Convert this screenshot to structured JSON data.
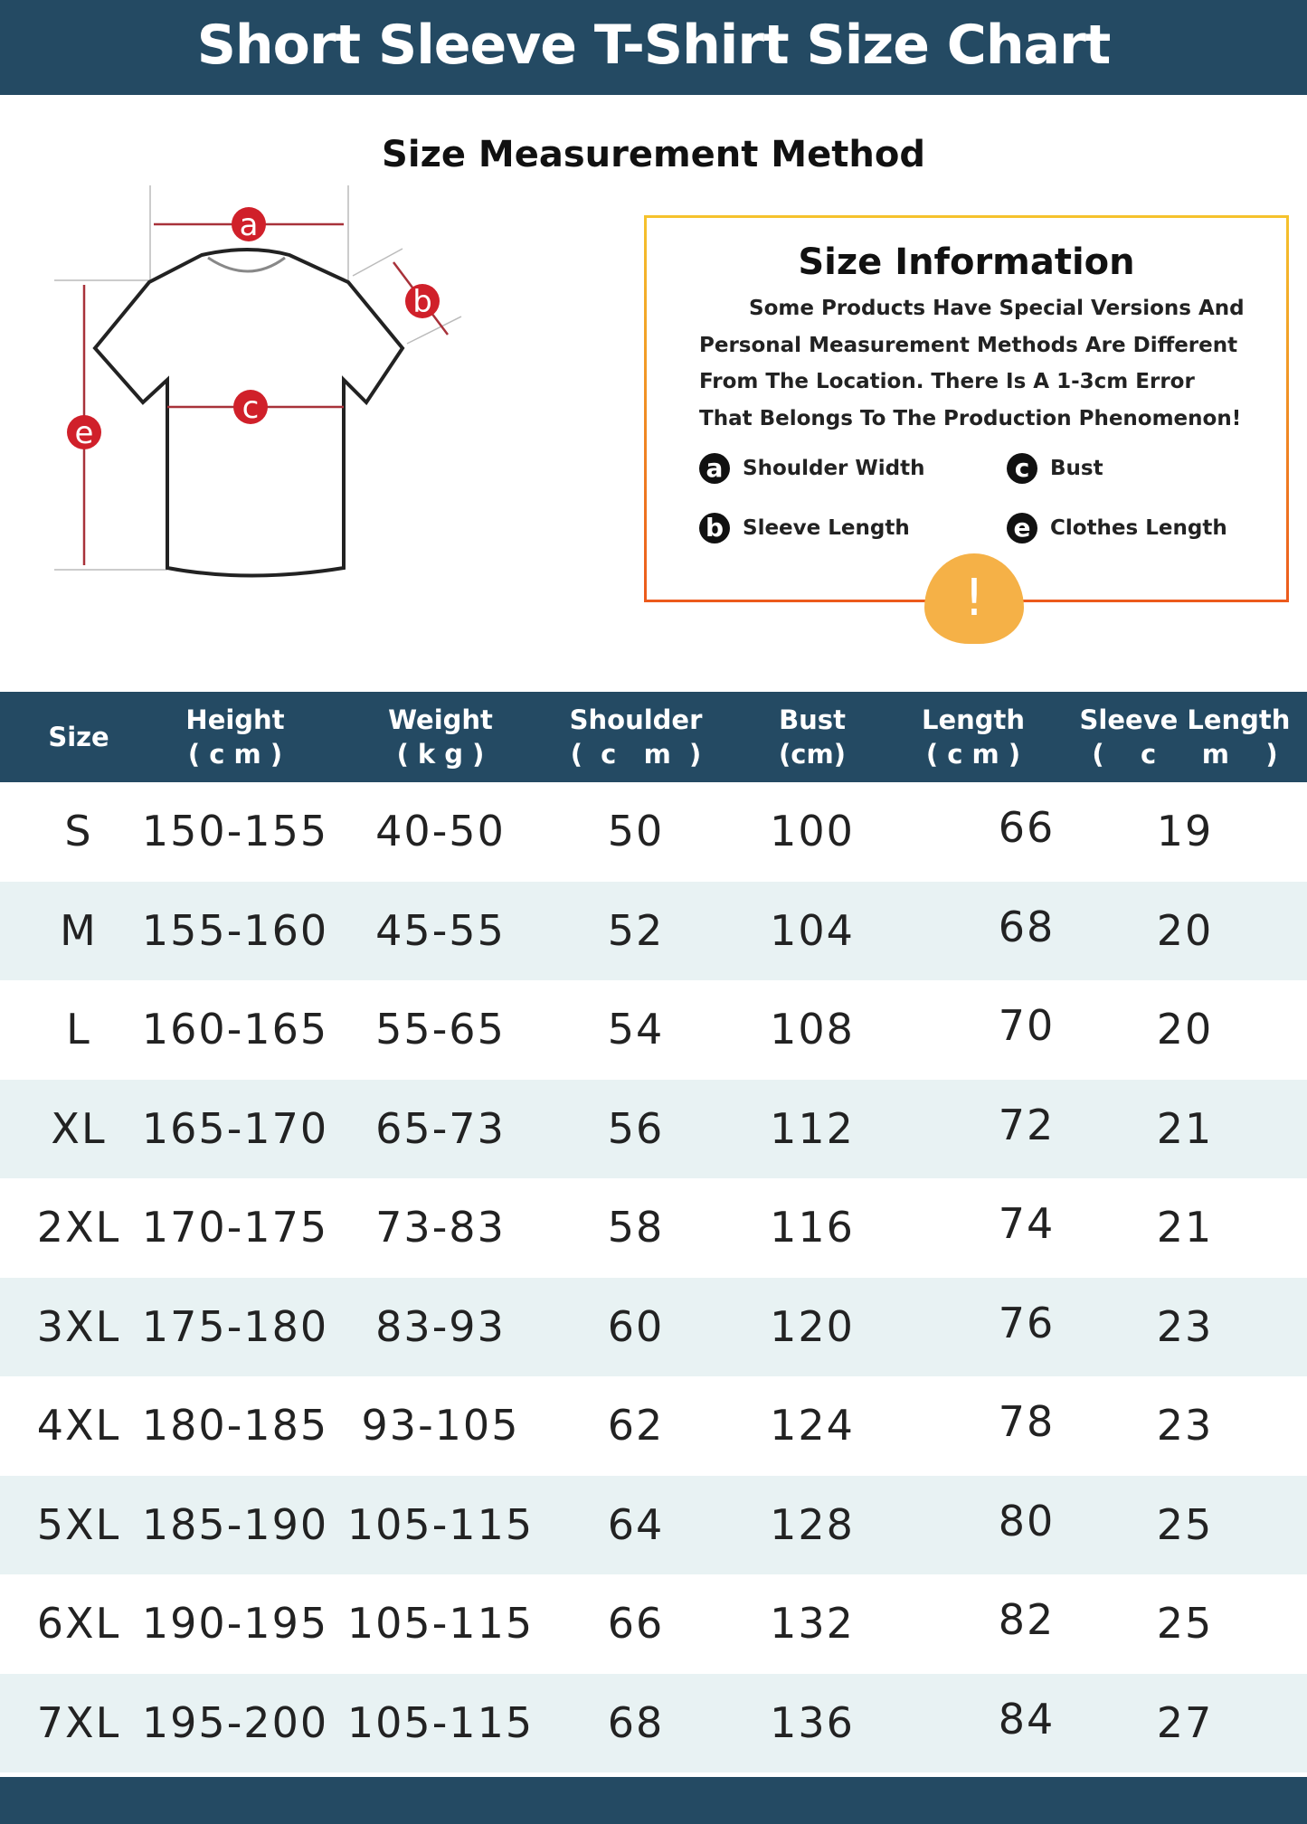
{
  "title": "Short Sleeve T-Shirt Size Chart",
  "subtitle": "Size Measurement Method",
  "diagram_labels": [
    "a",
    "b",
    "c",
    "e"
  ],
  "info": {
    "title": "Size Information",
    "text": "Some Products Have Special Versions And Personal Measurement Methods Are Different From The Location. There Is A 1-3cm Error That Belongs To The Production Phenomenon!",
    "legend": [
      {
        "key": "a",
        "label": "Shoulder Width"
      },
      {
        "key": "c",
        "label": "Bust"
      },
      {
        "key": "b",
        "label": "Sleeve Length"
      },
      {
        "key": "e",
        "label": "Clothes Length"
      }
    ]
  },
  "warning_icon": "!",
  "colors": {
    "header": "#244a63",
    "row_alt": "#e8f2f3",
    "marker": "#d0202a",
    "box_top": "#f5c22c",
    "box_bottom": "#ec5a1c",
    "warning": "#f5b147"
  },
  "table": {
    "headers": [
      {
        "line1": "Size",
        "line2": ""
      },
      {
        "line1": "Height",
        "line2": "( c m )"
      },
      {
        "line1": "Weight",
        "line2": "( k g )"
      },
      {
        "line1": "Shoulder",
        "line2": "(  c   m  )"
      },
      {
        "line1": "Bust",
        "line2": "(cm)"
      },
      {
        "line1": "Length",
        "line2": "( c m )"
      },
      {
        "line1": "Sleeve Length",
        "line2": "(    c     m    )"
      }
    ],
    "rows": [
      [
        "S",
        "150-155",
        "40-50",
        "50",
        "100",
        "66",
        "19"
      ],
      [
        "M",
        "155-160",
        "45-55",
        "52",
        "104",
        "68",
        "20"
      ],
      [
        "L",
        "160-165",
        "55-65",
        "54",
        "108",
        "70",
        "20"
      ],
      [
        "XL",
        "165-170",
        "65-73",
        "56",
        "112",
        "72",
        "21"
      ],
      [
        "2XL",
        "170-175",
        "73-83",
        "58",
        "116",
        "74",
        "21"
      ],
      [
        "3XL",
        "175-180",
        "83-93",
        "60",
        "120",
        "76",
        "23"
      ],
      [
        "4XL",
        "180-185",
        "93-105",
        "62",
        "124",
        "78",
        "23"
      ],
      [
        "5XL",
        "185-190",
        "105-115",
        "64",
        "128",
        "80",
        "25"
      ],
      [
        "6XL",
        "190-195",
        "105-115",
        "66",
        "132",
        "82",
        "25"
      ],
      [
        "7XL",
        "195-200",
        "105-115",
        "68",
        "136",
        "84",
        "27"
      ]
    ]
  }
}
